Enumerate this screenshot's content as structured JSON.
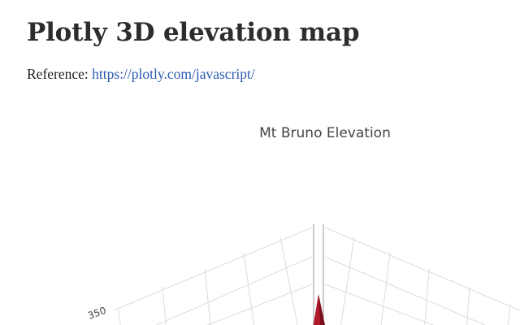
{
  "page": {
    "title": "Plotly 3D elevation map",
    "reference_label": "Reference:",
    "reference_link": "https://plotly.com/javascript/"
  },
  "plot": {
    "title": "Mt Bruno Elevation",
    "visible_tick_label": "350",
    "colors": {
      "grid": "#dcdcdc",
      "axis_line": "#9a9a9a",
      "surface_peak": "#b2182b",
      "surface_shadow": "#7a0d1c",
      "title_text": "#444444",
      "link": "#2a5db0"
    }
  },
  "chart_data": {
    "type": "surface",
    "title": "Mt Bruno Elevation",
    "z_tick_labels_visible": [
      "350"
    ],
    "colorscale_visible": "dark red peak"
  }
}
